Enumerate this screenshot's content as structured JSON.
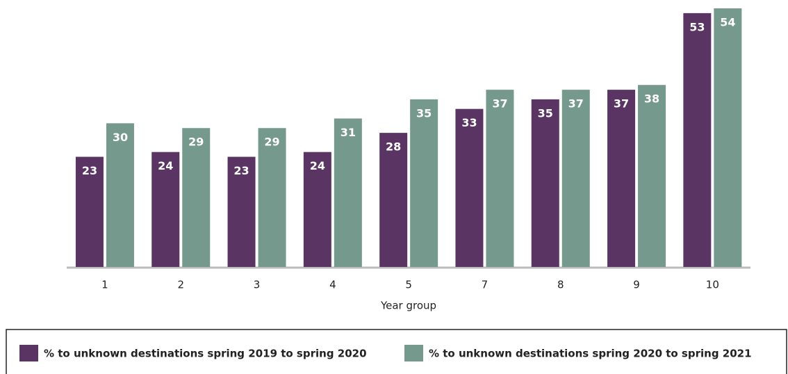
{
  "chart_data": {
    "type": "bar",
    "x_label": "Year group",
    "categories": [
      "1",
      "2",
      "3",
      "4",
      "5",
      "7",
      "8",
      "9",
      "10"
    ],
    "series": [
      {
        "name": "% to unknown destinations spring 2019 to spring 2020",
        "color": "#5a3563",
        "values": [
          23,
          24,
          23,
          24,
          28,
          33,
          35,
          37,
          53
        ]
      },
      {
        "name": "% to unknown destinations spring 2020 to spring 2021",
        "color": "#76998d",
        "values": [
          30,
          29,
          29,
          31,
          35,
          37,
          37,
          38,
          54
        ]
      }
    ]
  }
}
